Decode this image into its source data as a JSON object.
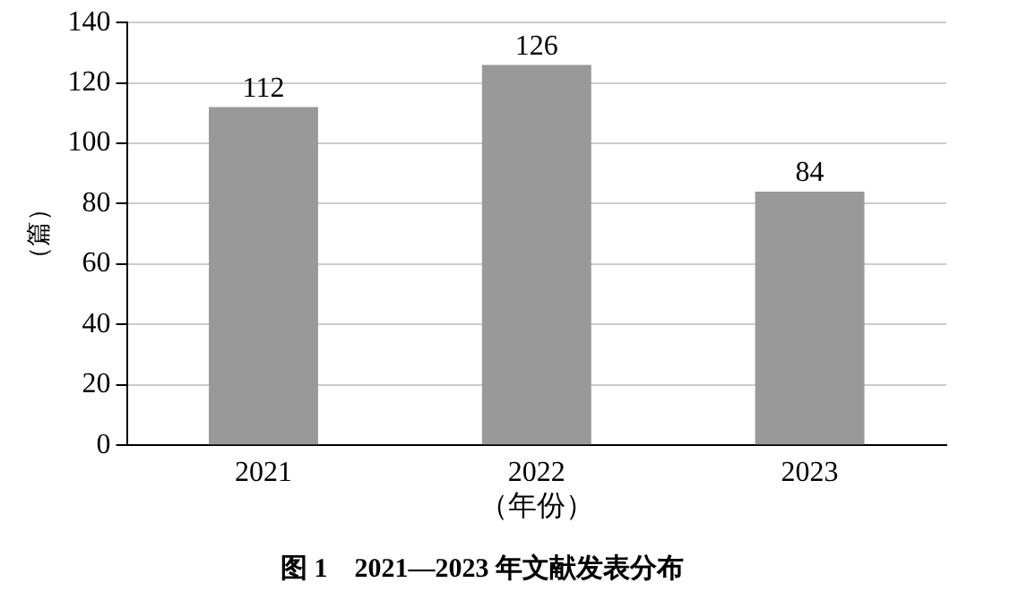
{
  "chart_data": {
    "type": "bar",
    "title": "图 1　2021—2023 年文献发表分布",
    "xlabel": "（年份）",
    "ylabel": "（篇）",
    "categories": [
      "2021",
      "2022",
      "2023"
    ],
    "values": [
      112,
      126,
      84
    ],
    "color": "#999999",
    "ylim": [
      0,
      140
    ],
    "yticks": [
      0,
      20,
      40,
      60,
      80,
      100,
      120,
      140
    ],
    "grid": "y",
    "data_labels": true
  }
}
